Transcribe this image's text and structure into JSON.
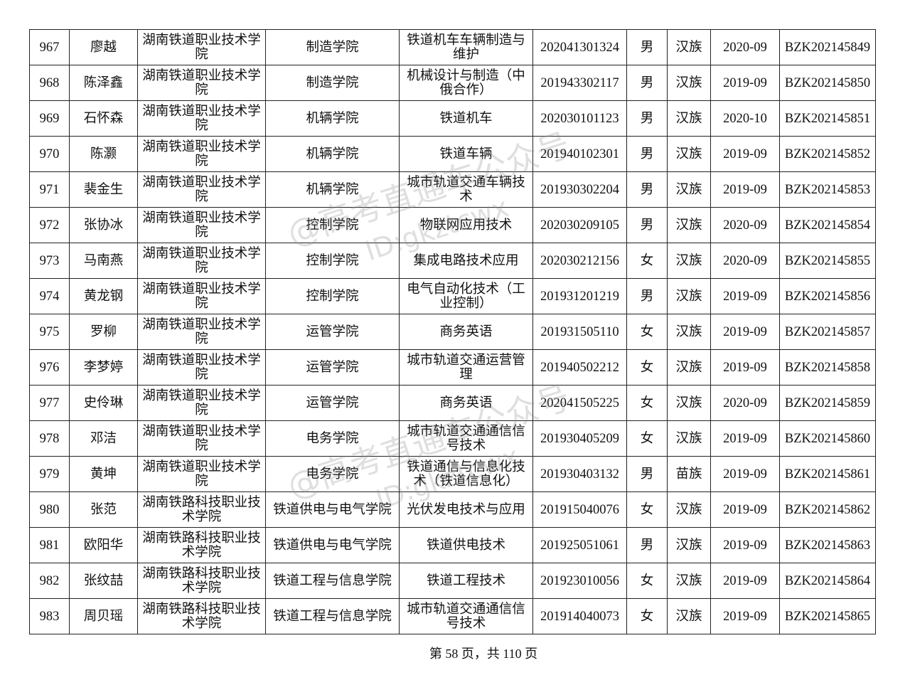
{
  "table": {
    "rows": [
      [
        "967",
        "廖越",
        "湖南铁道职业技术学院",
        "制造学院",
        "铁道机车车辆制造与维护",
        "202041301324",
        "男",
        "汉族",
        "2020-09",
        "BZK202145849"
      ],
      [
        "968",
        "陈泽鑫",
        "湖南铁道职业技术学院",
        "制造学院",
        "机械设计与制造（中俄合作）",
        "201943302117",
        "男",
        "汉族",
        "2019-09",
        "BZK202145850"
      ],
      [
        "969",
        "石怀森",
        "湖南铁道职业技术学院",
        "机辆学院",
        "铁道机车",
        "202030101123",
        "男",
        "汉族",
        "2020-10",
        "BZK202145851"
      ],
      [
        "970",
        "陈灏",
        "湖南铁道职业技术学院",
        "机辆学院",
        "铁道车辆",
        "201940102301",
        "男",
        "汉族",
        "2019-09",
        "BZK202145852"
      ],
      [
        "971",
        "裴金生",
        "湖南铁道职业技术学院",
        "机辆学院",
        "城市轨道交通车辆技术",
        "201930302204",
        "男",
        "汉族",
        "2019-09",
        "BZK202145853"
      ],
      [
        "972",
        "张协冰",
        "湖南铁道职业技术学院",
        "控制学院",
        "物联网应用技术",
        "202030209105",
        "男",
        "汉族",
        "2020-09",
        "BZK202145854"
      ],
      [
        "973",
        "马南燕",
        "湖南铁道职业技术学院",
        "控制学院",
        "集成电路技术应用",
        "202030212156",
        "女",
        "汉族",
        "2020-09",
        "BZK202145855"
      ],
      [
        "974",
        "黄龙钢",
        "湖南铁道职业技术学院",
        "控制学院",
        "电气自动化技术（工业控制）",
        "201931201219",
        "男",
        "汉族",
        "2019-09",
        "BZK202145856"
      ],
      [
        "975",
        "罗柳",
        "湖南铁道职业技术学院",
        "运管学院",
        "商务英语",
        "201931505110",
        "女",
        "汉族",
        "2019-09",
        "BZK202145857"
      ],
      [
        "976",
        "李梦婷",
        "湖南铁道职业技术学院",
        "运管学院",
        "城市轨道交通运营管理",
        "201940502212",
        "女",
        "汉族",
        "2019-09",
        "BZK202145858"
      ],
      [
        "977",
        "史伶琳",
        "湖南铁道职业技术学院",
        "运管学院",
        "商务英语",
        "202041505225",
        "女",
        "汉族",
        "2020-09",
        "BZK202145859"
      ],
      [
        "978",
        "邓洁",
        "湖南铁道职业技术学院",
        "电务学院",
        "城市轨道交通通信信号技术",
        "201930405209",
        "女",
        "汉族",
        "2019-09",
        "BZK202145860"
      ],
      [
        "979",
        "黄坤",
        "湖南铁道职业技术学院",
        "电务学院",
        "铁道通信与信息化技术（铁道信息化）",
        "201930403132",
        "男",
        "苗族",
        "2019-09",
        "BZK202145861"
      ],
      [
        "980",
        "张范",
        "湖南铁路科技职业技术学院",
        "铁道供电与电气学院",
        "光伏发电技术与应用",
        "201915040076",
        "女",
        "汉族",
        "2019-09",
        "BZK202145862"
      ],
      [
        "981",
        "欧阳华",
        "湖南铁路科技职业技术学院",
        "铁道供电与电气学院",
        "铁道供电技术",
        "201925051061",
        "男",
        "汉族",
        "2019-09",
        "BZK202145863"
      ],
      [
        "982",
        "张纹喆",
        "湖南铁路科技职业技术学院",
        "铁道工程与信息学院",
        "铁道工程技术",
        "201923010056",
        "女",
        "汉族",
        "2019-09",
        "BZK202145864"
      ],
      [
        "983",
        "周贝瑶",
        "湖南铁路科技职业技术学院",
        "铁道工程与信息学院",
        "城市轨道交通通信信号技术",
        "201914040073",
        "女",
        "汉族",
        "2019-09",
        "BZK202145865"
      ]
    ]
  },
  "footer": "第 58 页，共 110 页",
  "watermarks": [
    "@高考直通车公众号",
    "ID:gkztcwx",
    "@高考直通车公众号",
    "ID:gkztcwx"
  ]
}
